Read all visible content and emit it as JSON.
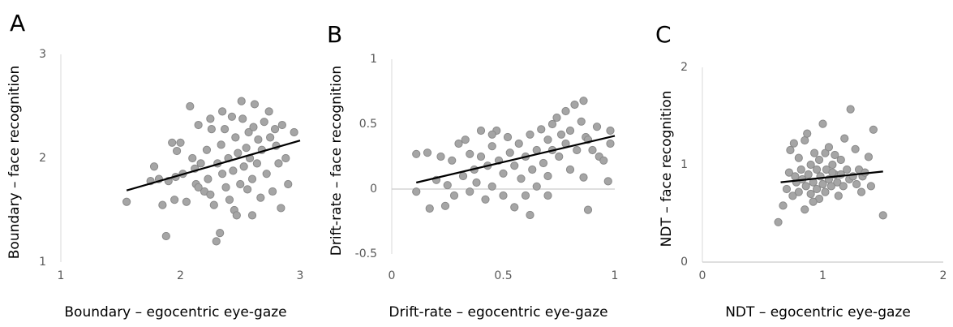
{
  "chart_data": [
    {
      "type": "scatter",
      "panel": "A",
      "x_label": "Boundary – egocentric eye-gaze",
      "y_label": "Boundary – face recognition",
      "xlim": [
        1,
        3
      ],
      "xticks": [
        1,
        2,
        3
      ],
      "ylim": [
        1,
        3
      ],
      "yticks": [
        1,
        2,
        3
      ],
      "marker_color": "#a5a5a5",
      "trend_color": "#000000",
      "trendline": {
        "x": [
          1.55,
          3
        ],
        "y": [
          1.69,
          2.17
        ]
      },
      "points": [
        [
          1.55,
          1.58
        ],
        [
          1.75,
          1.78
        ],
        [
          1.78,
          1.92
        ],
        [
          1.82,
          1.8
        ],
        [
          1.85,
          1.55
        ],
        [
          1.88,
          1.25
        ],
        [
          1.9,
          1.78
        ],
        [
          1.93,
          2.15
        ],
        [
          1.95,
          1.6
        ],
        [
          1.96,
          1.82
        ],
        [
          1.97,
          2.07
        ],
        [
          2.0,
          2.15
        ],
        [
          2.02,
          1.85
        ],
        [
          2.05,
          1.58
        ],
        [
          2.08,
          2.5
        ],
        [
          2.1,
          2.0
        ],
        [
          2.12,
          1.9
        ],
        [
          2.13,
          1.75
        ],
        [
          2.15,
          2.32
        ],
        [
          2.17,
          1.95
        ],
        [
          2.2,
          1.68
        ],
        [
          2.22,
          2.08
        ],
        [
          2.23,
          1.8
        ],
        [
          2.25,
          1.65
        ],
        [
          2.26,
          2.28
        ],
        [
          2.28,
          1.55
        ],
        [
          2.3,
          1.2
        ],
        [
          2.31,
          1.95
        ],
        [
          2.33,
          1.28
        ],
        [
          2.34,
          2.13
        ],
        [
          2.35,
          1.85
        ],
        [
          2.37,
          2.28
        ],
        [
          2.38,
          1.72
        ],
        [
          2.4,
          2.0
        ],
        [
          2.41,
          1.6
        ],
        [
          2.43,
          2.4
        ],
        [
          2.44,
          1.88
        ],
        [
          2.45,
          1.5
        ],
        [
          2.46,
          2.2
        ],
        [
          2.47,
          1.45
        ],
        [
          2.48,
          2.05
        ],
        [
          2.5,
          1.75
        ],
        [
          2.51,
          2.55
        ],
        [
          2.52,
          2.38
        ],
        [
          2.53,
          1.92
        ],
        [
          2.55,
          2.1
        ],
        [
          2.56,
          1.7
        ],
        [
          2.57,
          2.25
        ],
        [
          2.58,
          2.0
        ],
        [
          2.6,
          1.8
        ],
        [
          2.61,
          2.3
        ],
        [
          2.62,
          2.52
        ],
        [
          2.64,
          1.95
        ],
        [
          2.65,
          2.18
        ],
        [
          2.67,
          1.62
        ],
        [
          2.68,
          2.08
        ],
        [
          2.7,
          2.35
        ],
        [
          2.72,
          1.85
        ],
        [
          2.74,
          2.45
        ],
        [
          2.75,
          2.2
        ],
        [
          2.77,
          1.68
        ],
        [
          2.79,
          2.28
        ],
        [
          2.8,
          2.12
        ],
        [
          2.82,
          1.95
        ],
        [
          2.84,
          1.52
        ],
        [
          2.85,
          2.32
        ],
        [
          2.88,
          2.0
        ],
        [
          2.9,
          1.75
        ],
        [
          2.95,
          2.25
        ],
        [
          2.6,
          1.45
        ],
        [
          2.25,
          2.38
        ],
        [
          2.15,
          1.72
        ],
        [
          2.35,
          2.45
        ]
      ]
    },
    {
      "type": "scatter",
      "panel": "B",
      "x_label": "Drift-rate – egocentric eye-gaze",
      "y_label": "Drift-rate – face recognition",
      "xlim": [
        0,
        1
      ],
      "xticks": [
        0,
        0.5,
        1
      ],
      "ylim": [
        -0.5,
        1
      ],
      "yticks": [
        -0.5,
        0,
        0.5,
        1
      ],
      "marker_color": "#a5a5a5",
      "trend_color": "#000000",
      "trendline": {
        "x": [
          0.11,
          1
        ],
        "y": [
          0.05,
          0.41
        ]
      },
      "points": [
        [
          0.11,
          0.27
        ],
        [
          0.11,
          -0.02
        ],
        [
          0.16,
          0.28
        ],
        [
          0.17,
          -0.15
        ],
        [
          0.2,
          0.07
        ],
        [
          0.24,
          -0.13
        ],
        [
          0.25,
          0.03
        ],
        [
          0.27,
          0.22
        ],
        [
          0.28,
          -0.05
        ],
        [
          0.3,
          0.35
        ],
        [
          0.32,
          0.1
        ],
        [
          0.33,
          0.38
        ],
        [
          0.35,
          0.27
        ],
        [
          0.35,
          -0.02
        ],
        [
          0.37,
          0.15
        ],
        [
          0.38,
          0.05
        ],
        [
          0.4,
          0.45
        ],
        [
          0.4,
          0.25
        ],
        [
          0.42,
          -0.08
        ],
        [
          0.43,
          0.18
        ],
        [
          0.45,
          0.33
        ],
        [
          0.45,
          0.02
        ],
        [
          0.47,
          0.45
        ],
        [
          0.48,
          0.22
        ],
        [
          0.5,
          0.12
        ],
        [
          0.5,
          -0.05
        ],
        [
          0.52,
          0.4
        ],
        [
          0.53,
          0.28
        ],
        [
          0.55,
          0.18
        ],
        [
          0.55,
          -0.14
        ],
        [
          0.57,
          0.35
        ],
        [
          0.58,
          0.08
        ],
        [
          0.6,
          0.25
        ],
        [
          0.6,
          -0.05
        ],
        [
          0.62,
          0.42
        ],
        [
          0.62,
          -0.2
        ],
        [
          0.63,
          0.15
        ],
        [
          0.65,
          0.3
        ],
        [
          0.65,
          0.02
        ],
        [
          0.67,
          0.46
        ],
        [
          0.68,
          0.2
        ],
        [
          0.7,
          0.38
        ],
        [
          0.7,
          0.1
        ],
        [
          0.72,
          0.5
        ],
        [
          0.72,
          0.3
        ],
        [
          0.74,
          0.55
        ],
        [
          0.75,
          0.25
        ],
        [
          0.76,
          0.42
        ],
        [
          0.78,
          0.6
        ],
        [
          0.78,
          0.35
        ],
        [
          0.8,
          0.45
        ],
        [
          0.8,
          0.15
        ],
        [
          0.82,
          0.65
        ],
        [
          0.83,
          0.3
        ],
        [
          0.85,
          0.52
        ],
        [
          0.86,
          0.09
        ],
        [
          0.86,
          0.68
        ],
        [
          0.87,
          0.4
        ],
        [
          0.88,
          0.38
        ],
        [
          0.88,
          -0.16
        ],
        [
          0.9,
          0.3
        ],
        [
          0.92,
          0.48
        ],
        [
          0.93,
          0.25
        ],
        [
          0.95,
          0.22
        ],
        [
          0.97,
          0.06
        ],
        [
          0.98,
          0.45
        ],
        [
          0.98,
          0.35
        ],
        [
          0.7,
          -0.05
        ],
        [
          0.45,
          0.42
        ],
        [
          0.22,
          0.25
        ]
      ]
    },
    {
      "type": "scatter",
      "panel": "C",
      "x_label": "NDT – egocentric eye-gaze",
      "y_label": "NDT – face recognition",
      "xlim": [
        0,
        2
      ],
      "xticks": [
        0,
        1,
        2
      ],
      "ylim": [
        0,
        2
      ],
      "yticks": [
        0,
        1,
        2
      ],
      "marker_color": "#a5a5a5",
      "trend_color": "#000000",
      "trendline": {
        "x": [
          0.65,
          1.5
        ],
        "y": [
          0.82,
          0.93
        ]
      },
      "points": [
        [
          0.63,
          0.41
        ],
        [
          0.67,
          0.58
        ],
        [
          0.7,
          0.75
        ],
        [
          0.72,
          0.92
        ],
        [
          0.73,
          1.15
        ],
        [
          0.75,
          0.68
        ],
        [
          0.76,
          1.22
        ],
        [
          0.78,
          0.82
        ],
        [
          0.8,
          1.07
        ],
        [
          0.8,
          0.72
        ],
        [
          0.82,
          0.95
        ],
        [
          0.83,
          0.85
        ],
        [
          0.85,
          1.25
        ],
        [
          0.85,
          0.54
        ],
        [
          0.86,
          0.78
        ],
        [
          0.87,
          1.32
        ],
        [
          0.88,
          0.9
        ],
        [
          0.9,
          1.0
        ],
        [
          0.9,
          0.7
        ],
        [
          0.92,
          0.82
        ],
        [
          0.93,
          1.12
        ],
        [
          0.95,
          0.75
        ],
        [
          0.95,
          0.95
        ],
        [
          0.97,
          1.05
        ],
        [
          0.97,
          0.65
        ],
        [
          0.98,
          0.88
        ],
        [
          1.0,
          1.42
        ],
        [
          1.0,
          0.8
        ],
        [
          1.02,
          1.12
        ],
        [
          1.02,
          0.72
        ],
        [
          1.03,
          0.95
        ],
        [
          1.05,
          1.18
        ],
        [
          1.05,
          0.85
        ],
        [
          1.07,
          0.78
        ],
        [
          1.08,
          1.0
        ],
        [
          1.1,
          0.9
        ],
        [
          1.1,
          1.1
        ],
        [
          1.12,
          0.82
        ],
        [
          1.13,
          0.68
        ],
        [
          1.15,
          1.05
        ],
        [
          1.15,
          0.9
        ],
        [
          1.17,
          0.78
        ],
        [
          1.18,
          1.27
        ],
        [
          1.2,
          0.95
        ],
        [
          1.22,
          0.85
        ],
        [
          1.23,
          1.57
        ],
        [
          1.25,
          0.88
        ],
        [
          1.27,
          1.16
        ],
        [
          1.28,
          0.8
        ],
        [
          1.3,
          0.95
        ],
        [
          1.32,
          0.72
        ],
        [
          1.33,
          0.88
        ],
        [
          1.35,
          0.92
        ],
        [
          1.38,
          1.08
        ],
        [
          1.4,
          0.78
        ],
        [
          1.42,
          1.36
        ],
        [
          1.5,
          0.48
        ],
        [
          0.92,
          0.62
        ],
        [
          1.08,
          0.92
        ],
        [
          0.77,
          0.88
        ]
      ]
    }
  ]
}
